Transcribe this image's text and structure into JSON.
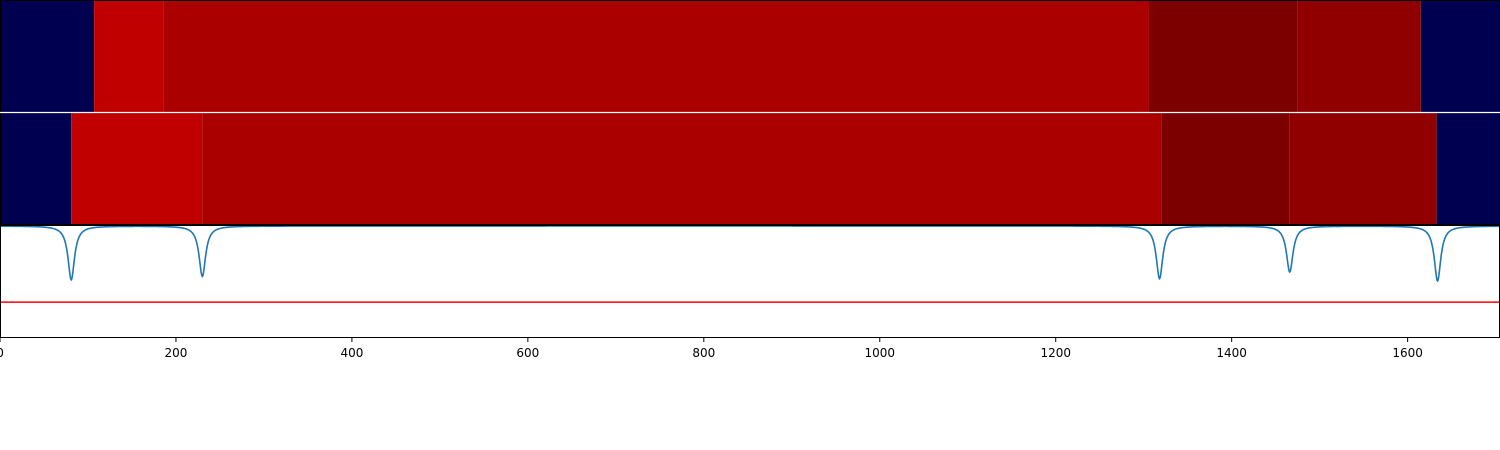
{
  "chart_data": {
    "type": "heatmap",
    "title": "",
    "xlabel": "",
    "ylabel": "",
    "xlim": [
      0,
      1705
    ],
    "x_ticks": [
      0,
      200,
      400,
      600,
      800,
      1000,
      1200,
      1400,
      1600
    ],
    "grid": false,
    "legend": "none",
    "colors": {
      "navy": "#000050",
      "bright_red": "#c00000",
      "red": "#aa0000",
      "dark_red": "#7d0000",
      "medium_dark_red": "#900000",
      "trace": "#1f77b4",
      "threshold": "#ff0000"
    },
    "segment_rows": [
      {
        "segments": [
          {
            "start": 0,
            "end": 107,
            "color": "navy"
          },
          {
            "start": 107,
            "end": 186,
            "color": "bright_red"
          },
          {
            "start": 186,
            "end": 1306,
            "color": "red"
          },
          {
            "start": 1306,
            "end": 1475,
            "color": "dark_red"
          },
          {
            "start": 1475,
            "end": 1615,
            "color": "medium_dark_red"
          },
          {
            "start": 1615,
            "end": 1705,
            "color": "navy"
          }
        ]
      },
      {
        "segments": [
          {
            "start": 0,
            "end": 81,
            "color": "navy"
          },
          {
            "start": 81,
            "end": 230,
            "color": "bright_red"
          },
          {
            "start": 230,
            "end": 1320,
            "color": "red"
          },
          {
            "start": 1320,
            "end": 1466,
            "color": "dark_red"
          },
          {
            "start": 1466,
            "end": 1633,
            "color": "medium_dark_red"
          },
          {
            "start": 1633,
            "end": 1705,
            "color": "navy"
          }
        ]
      }
    ],
    "signal_panel": {
      "ylim": [
        -1.0,
        0.0
      ],
      "baseline": 0.0,
      "threshold": -0.68,
      "dips": [
        {
          "center": 81,
          "depth": -0.48
        },
        {
          "center": 230,
          "depth": -0.45
        },
        {
          "center": 1318,
          "depth": -0.47
        },
        {
          "center": 1466,
          "depth": -0.41
        },
        {
          "center": 1634,
          "depth": -0.49
        }
      ]
    }
  }
}
